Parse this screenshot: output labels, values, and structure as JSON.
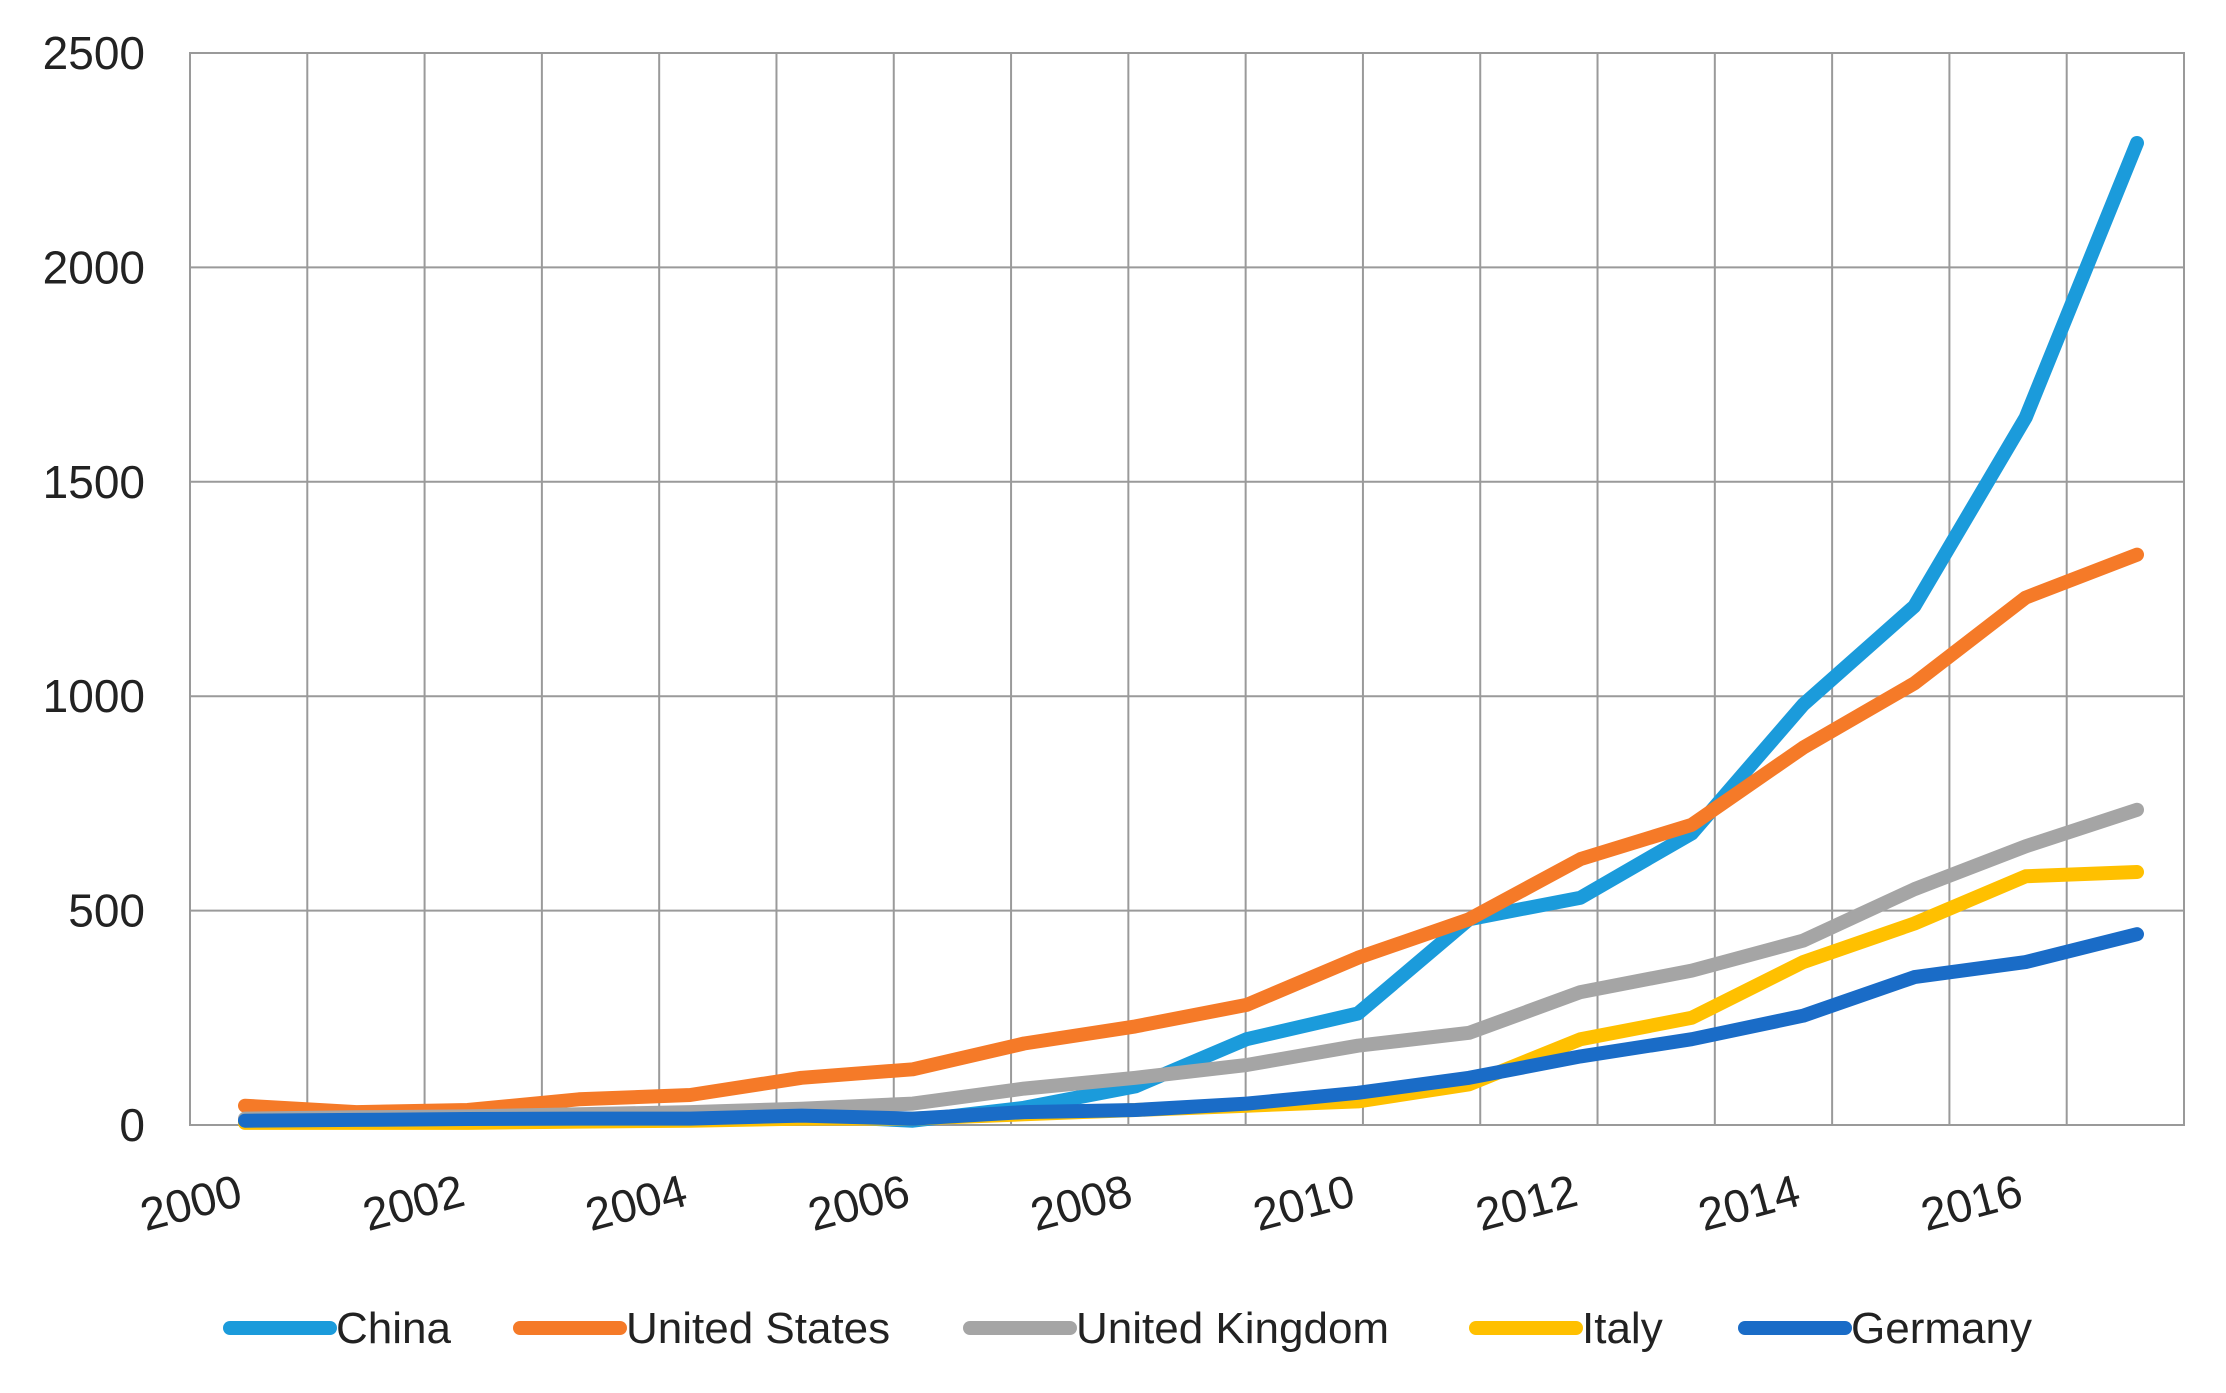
{
  "chart_data": {
    "type": "line",
    "title": "",
    "xlabel": "",
    "ylabel": "",
    "x": [
      2000,
      2001,
      2002,
      2003,
      2004,
      2005,
      2006,
      2007,
      2008,
      2009,
      2010,
      2011,
      2012,
      2013,
      2014,
      2015,
      2016,
      2017
    ],
    "xlim": [
      2000,
      2017
    ],
    "x_tick_labels": [
      "2000",
      "2002",
      "2004",
      "2006",
      "2008",
      "2010",
      "2012",
      "2014",
      "2016"
    ],
    "ylim": [
      0,
      2500
    ],
    "y_tick_labels": [
      "0",
      "500",
      "1000",
      "1500",
      "2000",
      "2500"
    ],
    "grid": true,
    "legend_position": "bottom",
    "series": [
      {
        "name": "China",
        "color": "#1B9BDB",
        "values": [
          10,
          10,
          12,
          14,
          15,
          22,
          10,
          40,
          90,
          200,
          260,
          480,
          530,
          680,
          980,
          1210,
          1650,
          2290
        ]
      },
      {
        "name": "United States",
        "color": "#F57A28",
        "values": [
          45,
          30,
          35,
          60,
          70,
          110,
          130,
          190,
          230,
          280,
          390,
          480,
          620,
          700,
          880,
          1030,
          1230,
          1330
        ]
      },
      {
        "name": "United Kingdom",
        "color": "#A5A5A5",
        "values": [
          15,
          18,
          20,
          25,
          30,
          38,
          50,
          85,
          110,
          140,
          185,
          215,
          310,
          360,
          430,
          550,
          650,
          735
        ]
      },
      {
        "name": "Italy",
        "color": "#FFC000",
        "values": [
          5,
          5,
          5,
          8,
          10,
          15,
          15,
          25,
          35,
          45,
          55,
          95,
          200,
          250,
          380,
          470,
          580,
          590
        ]
      },
      {
        "name": "Germany",
        "color": "#1A6CC7",
        "values": [
          10,
          12,
          14,
          15,
          15,
          22,
          15,
          30,
          35,
          50,
          75,
          110,
          160,
          200,
          255,
          345,
          380,
          445
        ]
      }
    ]
  }
}
